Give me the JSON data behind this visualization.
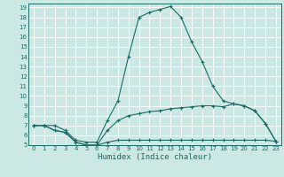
{
  "xlabel": "Humidex (Indice chaleur)",
  "bg_color": "#cce8e5",
  "grid_color": "#b0d4d0",
  "line_color": "#1a6b63",
  "xlim": [
    -0.5,
    23.5
  ],
  "ylim": [
    5,
    19.4
  ],
  "xticks": [
    0,
    1,
    2,
    3,
    4,
    5,
    6,
    7,
    8,
    9,
    10,
    11,
    12,
    13,
    14,
    15,
    16,
    17,
    18,
    19,
    20,
    21,
    22,
    23
  ],
  "yticks": [
    5,
    6,
    7,
    8,
    9,
    10,
    11,
    12,
    13,
    14,
    15,
    16,
    17,
    18,
    19
  ],
  "line1_x": [
    0,
    1,
    2,
    3,
    4,
    5,
    6,
    7,
    8,
    9,
    10,
    11,
    12,
    13,
    14,
    15,
    16,
    17,
    18,
    19,
    20,
    21,
    22,
    23
  ],
  "line1_y": [
    7.0,
    7.0,
    7.0,
    6.5,
    5.5,
    5.3,
    5.3,
    7.5,
    9.5,
    14.0,
    18.0,
    18.5,
    18.8,
    19.1,
    18.0,
    15.5,
    13.5,
    11.0,
    9.5,
    9.2,
    9.0,
    8.5,
    7.2,
    5.4
  ],
  "line2_x": [
    0,
    1,
    2,
    3,
    4,
    5,
    6,
    7,
    8,
    9,
    10,
    11,
    12,
    13,
    14,
    15,
    16,
    17,
    18,
    19,
    20,
    21,
    22,
    23
  ],
  "line2_y": [
    7.0,
    7.0,
    6.5,
    6.3,
    5.3,
    5.0,
    5.0,
    6.5,
    7.5,
    8.0,
    8.2,
    8.4,
    8.5,
    8.7,
    8.8,
    8.9,
    9.0,
    9.0,
    8.9,
    9.2,
    9.0,
    8.5,
    7.2,
    5.4
  ],
  "line3_x": [
    0,
    1,
    2,
    3,
    4,
    5,
    6,
    7,
    8,
    9,
    10,
    11,
    12,
    13,
    14,
    15,
    16,
    17,
    18,
    19,
    20,
    21,
    22,
    23
  ],
  "line3_y": [
    7.0,
    7.0,
    6.5,
    6.3,
    5.3,
    5.0,
    5.0,
    5.3,
    5.5,
    5.5,
    5.5,
    5.5,
    5.5,
    5.5,
    5.5,
    5.5,
    5.5,
    5.5,
    5.5,
    5.5,
    5.5,
    5.5,
    5.5,
    5.4
  ],
  "xlabel_fontsize": 6.5,
  "tick_fontsize": 5.0
}
